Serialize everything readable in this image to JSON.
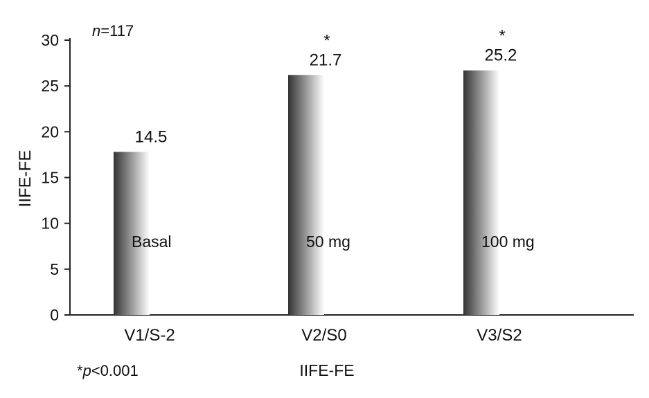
{
  "chart_data": {
    "type": "bar",
    "categories": [
      "V1/S-2",
      "V2/S0",
      "V3/S2"
    ],
    "values": [
      14.5,
      21.7,
      25.2
    ],
    "value_labels": [
      "14.5",
      "21.7",
      "25.2"
    ],
    "significance_marks": [
      "",
      "*",
      "*"
    ],
    "bar_inner_labels": [
      "Basal",
      "50 mg",
      "100 mg"
    ],
    "ylabel": "IIFE-FE",
    "xlabel": "IIFE-FE",
    "ylim": [
      0,
      30
    ],
    "yticks": [
      0,
      5,
      10,
      15,
      20,
      25,
      30
    ],
    "annotation_n": {
      "italic": "n",
      "text": "=117"
    },
    "footnote": {
      "prefix": "*",
      "italic": "p",
      "text": "<0.001"
    },
    "grid": false,
    "legend": "none",
    "bar_gradient": [
      "#333333",
      "#ffffff"
    ]
  }
}
